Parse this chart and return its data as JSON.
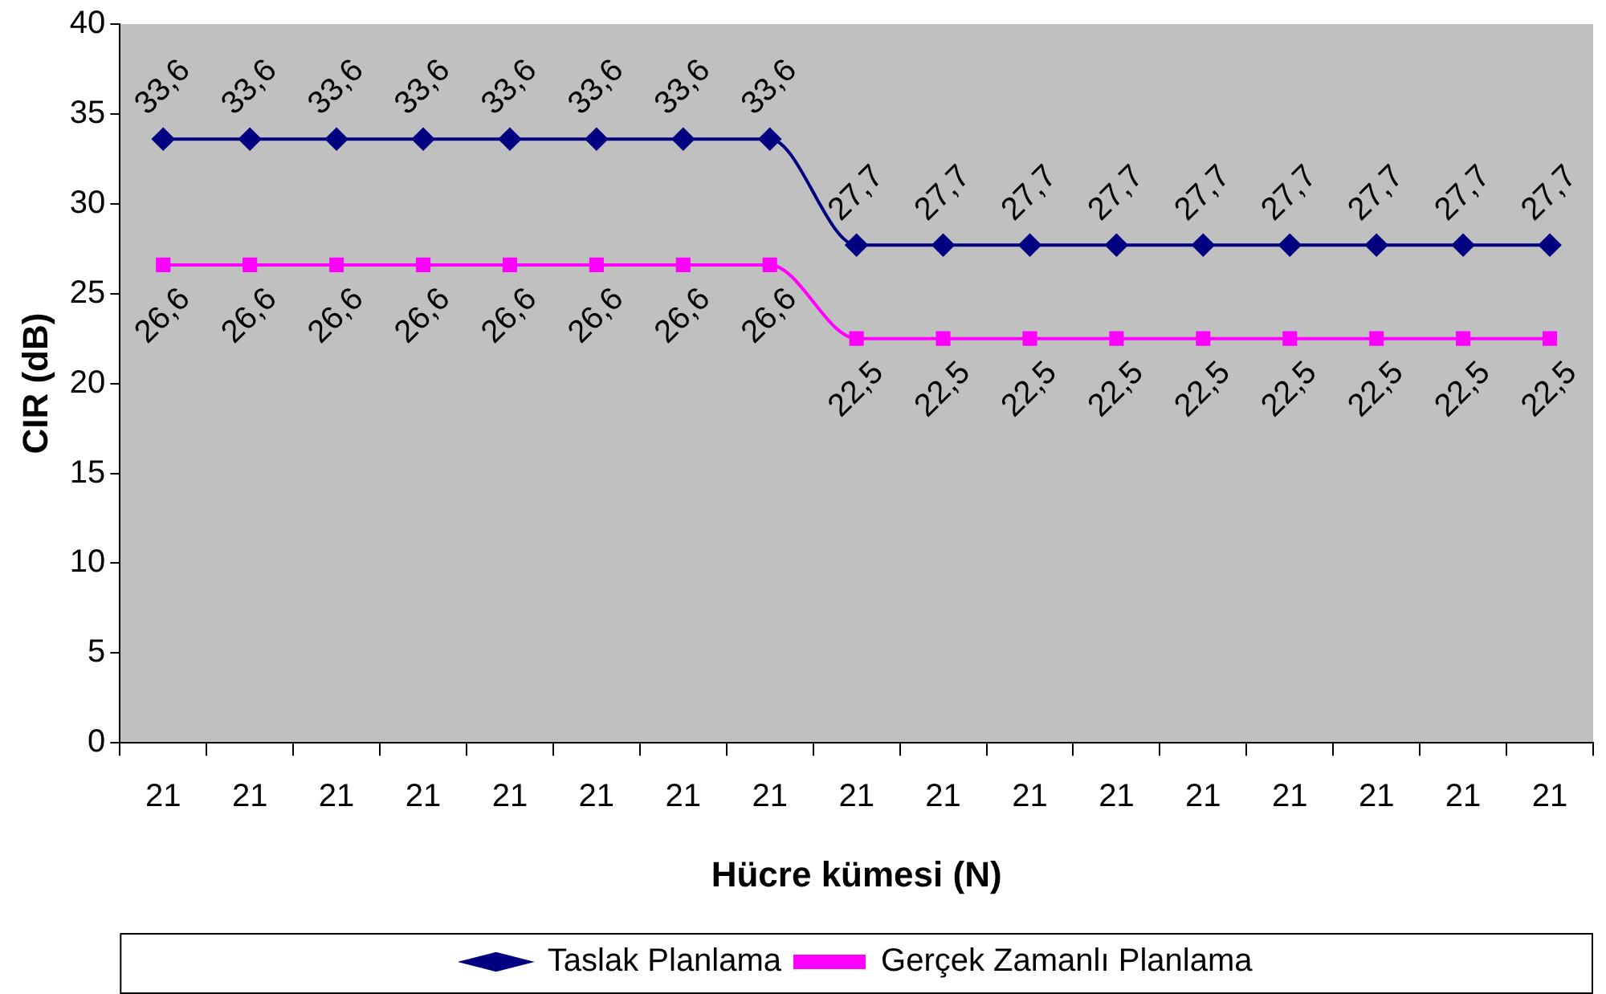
{
  "chart_data": {
    "type": "line",
    "xlabel": "Hücre kümesi (N)",
    "ylabel": "CIR (dB)",
    "categories": [
      "21",
      "21",
      "21",
      "21",
      "21",
      "21",
      "21",
      "21",
      "21",
      "21",
      "21",
      "21",
      "21",
      "21",
      "21",
      "21",
      "21"
    ],
    "series": [
      {
        "name": "Taslak Planlama",
        "color": "#000080",
        "marker": "diamond",
        "values": [
          33.6,
          33.6,
          33.6,
          33.6,
          33.6,
          33.6,
          33.6,
          33.6,
          27.7,
          27.7,
          27.7,
          27.7,
          27.7,
          27.7,
          27.7,
          27.7,
          27.7
        ],
        "value_labels": [
          "33,6",
          "33,6",
          "33,6",
          "33,6",
          "33,6",
          "33,6",
          "33,6",
          "33,6",
          "27,7",
          "27,7",
          "27,7",
          "27,7",
          "27,7",
          "27,7",
          "27,7",
          "27,7",
          "27,7"
        ]
      },
      {
        "name": "Gerçek Zamanlı Planlama",
        "color": "#ff00ff",
        "marker": "square",
        "values": [
          26.6,
          26.6,
          26.6,
          26.6,
          26.6,
          26.6,
          26.6,
          26.6,
          22.5,
          22.5,
          22.5,
          22.5,
          22.5,
          22.5,
          22.5,
          22.5,
          22.5
        ],
        "value_labels": [
          "26,6",
          "26,6",
          "26,6",
          "26,6",
          "26,6",
          "26,6",
          "26,6",
          "26,6",
          "22,5",
          "22,5",
          "22,5",
          "22,5",
          "22,5",
          "22,5",
          "22,5",
          "22,5",
          "22,5"
        ]
      }
    ],
    "ylim": [
      0,
      40
    ],
    "yticks": [
      0,
      5,
      10,
      15,
      20,
      25,
      30,
      35,
      40
    ],
    "grid": false,
    "legend": "bottom",
    "line_style": "solid"
  }
}
